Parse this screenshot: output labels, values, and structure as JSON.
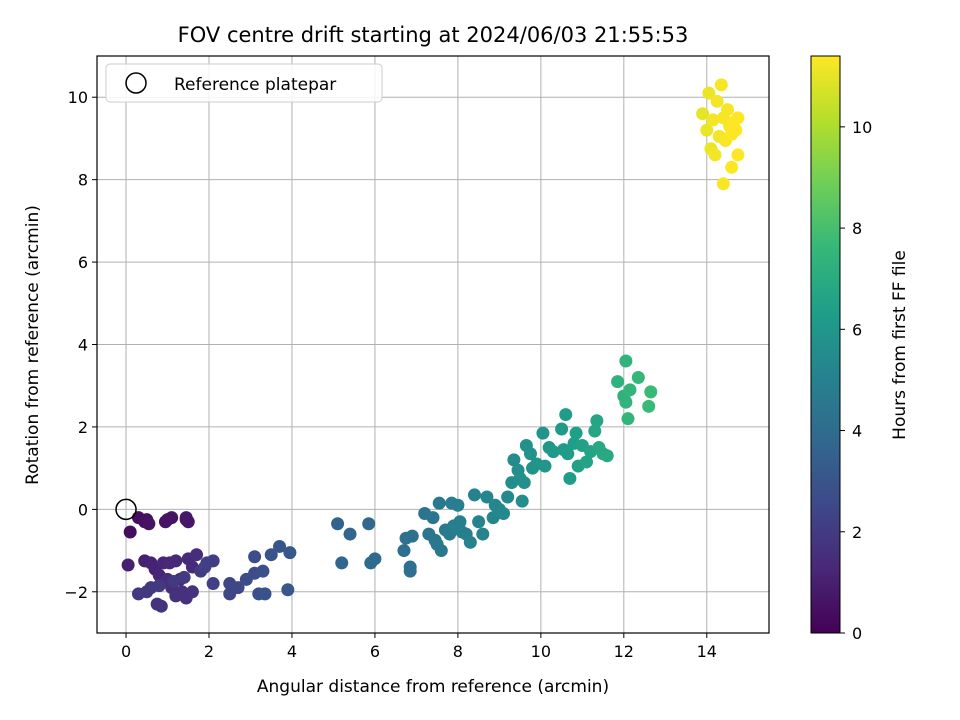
{
  "chart_data": {
    "type": "scatter",
    "title": "FOV centre drift starting at 2024/06/03 21:55:53",
    "xlabel": "Angular distance from reference (arcmin)",
    "ylabel": "Rotation from reference (arcmin)",
    "xlim": [
      -0.7,
      15.5
    ],
    "ylim": [
      -3.0,
      11.0
    ],
    "xticks": [
      0,
      2,
      4,
      6,
      8,
      10,
      12,
      14
    ],
    "yticks": [
      -2,
      0,
      2,
      4,
      6,
      8,
      10
    ],
    "xtick_labels": [
      "0",
      "2",
      "4",
      "6",
      "8",
      "10",
      "12",
      "14"
    ],
    "ytick_labels": [
      "−2",
      "0",
      "2",
      "4",
      "6",
      "8",
      "10"
    ],
    "grid": true,
    "legend": {
      "placement": "upper-left",
      "entries": [
        "Reference platepar"
      ]
    },
    "reference_point": {
      "x": 0,
      "y": 0,
      "marker": "open-circle",
      "color": "#000000"
    },
    "colorbar": {
      "label": "Hours from first FF file",
      "range": [
        0,
        11.4
      ],
      "ticks": [
        0,
        2,
        4,
        6,
        8,
        10
      ],
      "tick_labels": [
        "0",
        "2",
        "4",
        "6",
        "8",
        "10"
      ],
      "colormap": "viridis",
      "stops": [
        "#440154",
        "#482878",
        "#3e4989",
        "#31688e",
        "#26828e",
        "#1f9e89",
        "#35b779",
        "#6ece58",
        "#b5de2b",
        "#fde725"
      ]
    },
    "series": [
      {
        "points": [
          [
            0.1,
            -0.55,
            0.4
          ],
          [
            0.3,
            -0.2,
            0.4
          ],
          [
            0.45,
            -0.3,
            0.5
          ],
          [
            0.5,
            -0.25,
            0.5
          ],
          [
            0.55,
            -0.35,
            0.55
          ],
          [
            0.95,
            -0.3,
            0.6
          ],
          [
            1.0,
            -0.25,
            0.6
          ],
          [
            1.1,
            -0.2,
            0.6
          ],
          [
            1.45,
            -0.25,
            0.7
          ],
          [
            1.5,
            -0.3,
            0.7
          ],
          [
            1.45,
            -0.2,
            0.7
          ],
          [
            0.05,
            -1.35,
            1.0
          ],
          [
            0.45,
            -1.25,
            1.0
          ],
          [
            0.6,
            -1.3,
            1.1
          ],
          [
            0.7,
            -1.45,
            1.1
          ],
          [
            0.8,
            -1.6,
            1.2
          ],
          [
            0.9,
            -1.3,
            1.2
          ],
          [
            1.05,
            -1.3,
            1.3
          ],
          [
            1.2,
            -1.25,
            1.3
          ],
          [
            1.3,
            -1.7,
            1.3
          ],
          [
            1.5,
            -1.2,
            1.4
          ],
          [
            1.6,
            -1.4,
            1.4
          ],
          [
            1.7,
            -1.1,
            1.5
          ],
          [
            1.0,
            -1.7,
            1.5
          ],
          [
            1.1,
            -1.9,
            1.5
          ],
          [
            1.2,
            -2.1,
            1.6
          ],
          [
            1.35,
            -2.0,
            1.6
          ],
          [
            1.45,
            -2.15,
            1.6
          ],
          [
            1.6,
            -2.0,
            1.7
          ],
          [
            0.85,
            -2.35,
            1.7
          ],
          [
            0.75,
            -2.3,
            1.7
          ],
          [
            0.5,
            -2.0,
            1.8
          ],
          [
            0.3,
            -2.05,
            1.8
          ],
          [
            0.6,
            -1.9,
            1.9
          ],
          [
            0.8,
            -1.85,
            1.9
          ],
          [
            1.15,
            -1.75,
            1.9
          ],
          [
            1.4,
            -1.65,
            2.0
          ],
          [
            1.8,
            -1.5,
            2.0
          ],
          [
            1.95,
            -1.3,
            2.1
          ],
          [
            2.1,
            -1.25,
            2.1
          ],
          [
            2.1,
            -1.8,
            2.2
          ],
          [
            1.9,
            -1.4,
            2.2
          ],
          [
            2.5,
            -1.8,
            2.4
          ],
          [
            2.5,
            -2.05,
            2.4
          ],
          [
            2.7,
            -1.9,
            2.5
          ],
          [
            2.9,
            -1.7,
            2.6
          ],
          [
            3.1,
            -1.55,
            2.7
          ],
          [
            3.1,
            -1.15,
            2.7
          ],
          [
            3.3,
            -1.5,
            2.8
          ],
          [
            3.2,
            -2.05,
            2.8
          ],
          [
            3.35,
            -2.05,
            2.9
          ],
          [
            3.5,
            -1.1,
            3.0
          ],
          [
            3.7,
            -0.9,
            3.0
          ],
          [
            3.95,
            -1.05,
            3.1
          ],
          [
            3.9,
            -1.95,
            3.1
          ],
          [
            5.1,
            -0.35,
            3.6
          ],
          [
            5.4,
            -0.6,
            3.7
          ],
          [
            5.85,
            -0.35,
            3.8
          ],
          [
            5.2,
            -1.3,
            3.7
          ],
          [
            6.0,
            -1.2,
            3.9
          ],
          [
            5.9,
            -1.3,
            3.9
          ],
          [
            6.7,
            -1.0,
            4.1
          ],
          [
            6.75,
            -0.7,
            4.2
          ],
          [
            6.9,
            -0.65,
            4.2
          ],
          [
            6.85,
            -1.4,
            4.2
          ],
          [
            6.85,
            -1.5,
            4.2
          ],
          [
            7.2,
            -0.1,
            4.4
          ],
          [
            7.3,
            -0.6,
            4.5
          ],
          [
            7.4,
            -0.2,
            4.5
          ],
          [
            7.45,
            -0.75,
            4.5
          ],
          [
            7.5,
            -0.85,
            4.6
          ],
          [
            7.55,
            0.15,
            4.6
          ],
          [
            7.6,
            -1.0,
            4.6
          ],
          [
            7.7,
            -0.5,
            4.7
          ],
          [
            7.8,
            -0.6,
            4.7
          ],
          [
            7.85,
            0.15,
            4.8
          ],
          [
            7.9,
            -0.4,
            4.8
          ],
          [
            8.0,
            0.1,
            4.8
          ],
          [
            8.05,
            -0.3,
            4.9
          ],
          [
            8.1,
            -0.55,
            4.9
          ],
          [
            8.2,
            -0.6,
            4.9
          ],
          [
            8.3,
            -0.8,
            5.0
          ],
          [
            8.4,
            0.35,
            5.0
          ],
          [
            8.5,
            -0.3,
            5.1
          ],
          [
            8.6,
            -0.6,
            5.1
          ],
          [
            8.7,
            0.3,
            5.2
          ],
          [
            8.85,
            -0.2,
            5.2
          ],
          [
            8.9,
            0.1,
            5.3
          ],
          [
            9.0,
            0.0,
            5.3
          ],
          [
            9.1,
            -0.1,
            5.4
          ],
          [
            9.2,
            0.3,
            5.4
          ],
          [
            9.3,
            0.65,
            5.5
          ],
          [
            9.35,
            1.2,
            5.5
          ],
          [
            9.45,
            0.95,
            5.6
          ],
          [
            9.5,
            0.75,
            5.6
          ],
          [
            9.55,
            0.2,
            5.6
          ],
          [
            9.6,
            0.65,
            5.7
          ],
          [
            9.65,
            1.55,
            5.7
          ],
          [
            9.75,
            1.35,
            5.8
          ],
          [
            9.8,
            1.0,
            5.8
          ],
          [
            9.9,
            1.1,
            5.9
          ],
          [
            10.05,
            1.85,
            5.9
          ],
          [
            10.1,
            1.05,
            6.0
          ],
          [
            10.2,
            1.5,
            6.0
          ],
          [
            10.3,
            1.4,
            6.1
          ],
          [
            10.5,
            1.95,
            6.2
          ],
          [
            10.55,
            1.45,
            6.2
          ],
          [
            10.6,
            2.3,
            6.3
          ],
          [
            10.65,
            1.35,
            6.3
          ],
          [
            10.7,
            0.75,
            6.3
          ],
          [
            10.8,
            1.6,
            6.4
          ],
          [
            10.85,
            1.85,
            6.4
          ],
          [
            10.9,
            1.05,
            6.5
          ],
          [
            11.0,
            1.55,
            6.5
          ],
          [
            11.1,
            1.15,
            6.6
          ],
          [
            11.2,
            1.4,
            6.6
          ],
          [
            11.3,
            1.9,
            6.7
          ],
          [
            11.35,
            2.15,
            6.7
          ],
          [
            11.4,
            1.5,
            6.8
          ],
          [
            11.5,
            1.35,
            6.8
          ],
          [
            11.6,
            1.3,
            6.9
          ],
          [
            11.85,
            3.1,
            7.3
          ],
          [
            12.0,
            2.75,
            7.3
          ],
          [
            12.05,
            2.6,
            7.4
          ],
          [
            12.05,
            3.6,
            7.4
          ],
          [
            12.1,
            2.2,
            7.5
          ],
          [
            12.15,
            2.9,
            7.5
          ],
          [
            12.35,
            3.2,
            7.6
          ],
          [
            12.6,
            2.5,
            7.7
          ],
          [
            12.65,
            2.85,
            7.7
          ],
          [
            13.9,
            9.6,
            11.0
          ],
          [
            14.0,
            9.2,
            11.1
          ],
          [
            14.05,
            10.1,
            11.1
          ],
          [
            14.1,
            8.75,
            11.1
          ],
          [
            14.15,
            9.45,
            11.2
          ],
          [
            14.2,
            8.6,
            11.2
          ],
          [
            14.25,
            9.9,
            11.2
          ],
          [
            14.3,
            9.05,
            11.2
          ],
          [
            14.35,
            10.3,
            11.3
          ],
          [
            14.4,
            9.5,
            11.3
          ],
          [
            14.4,
            7.9,
            11.3
          ],
          [
            14.45,
            8.95,
            11.3
          ],
          [
            14.5,
            9.7,
            11.3
          ],
          [
            14.55,
            9.3,
            11.3
          ],
          [
            14.6,
            8.3,
            11.4
          ],
          [
            14.6,
            9.1,
            11.4
          ],
          [
            14.65,
            9.4,
            11.4
          ],
          [
            14.7,
            9.2,
            11.4
          ],
          [
            14.75,
            8.6,
            11.4
          ],
          [
            14.75,
            9.5,
            11.4
          ]
        ]
      }
    ]
  }
}
